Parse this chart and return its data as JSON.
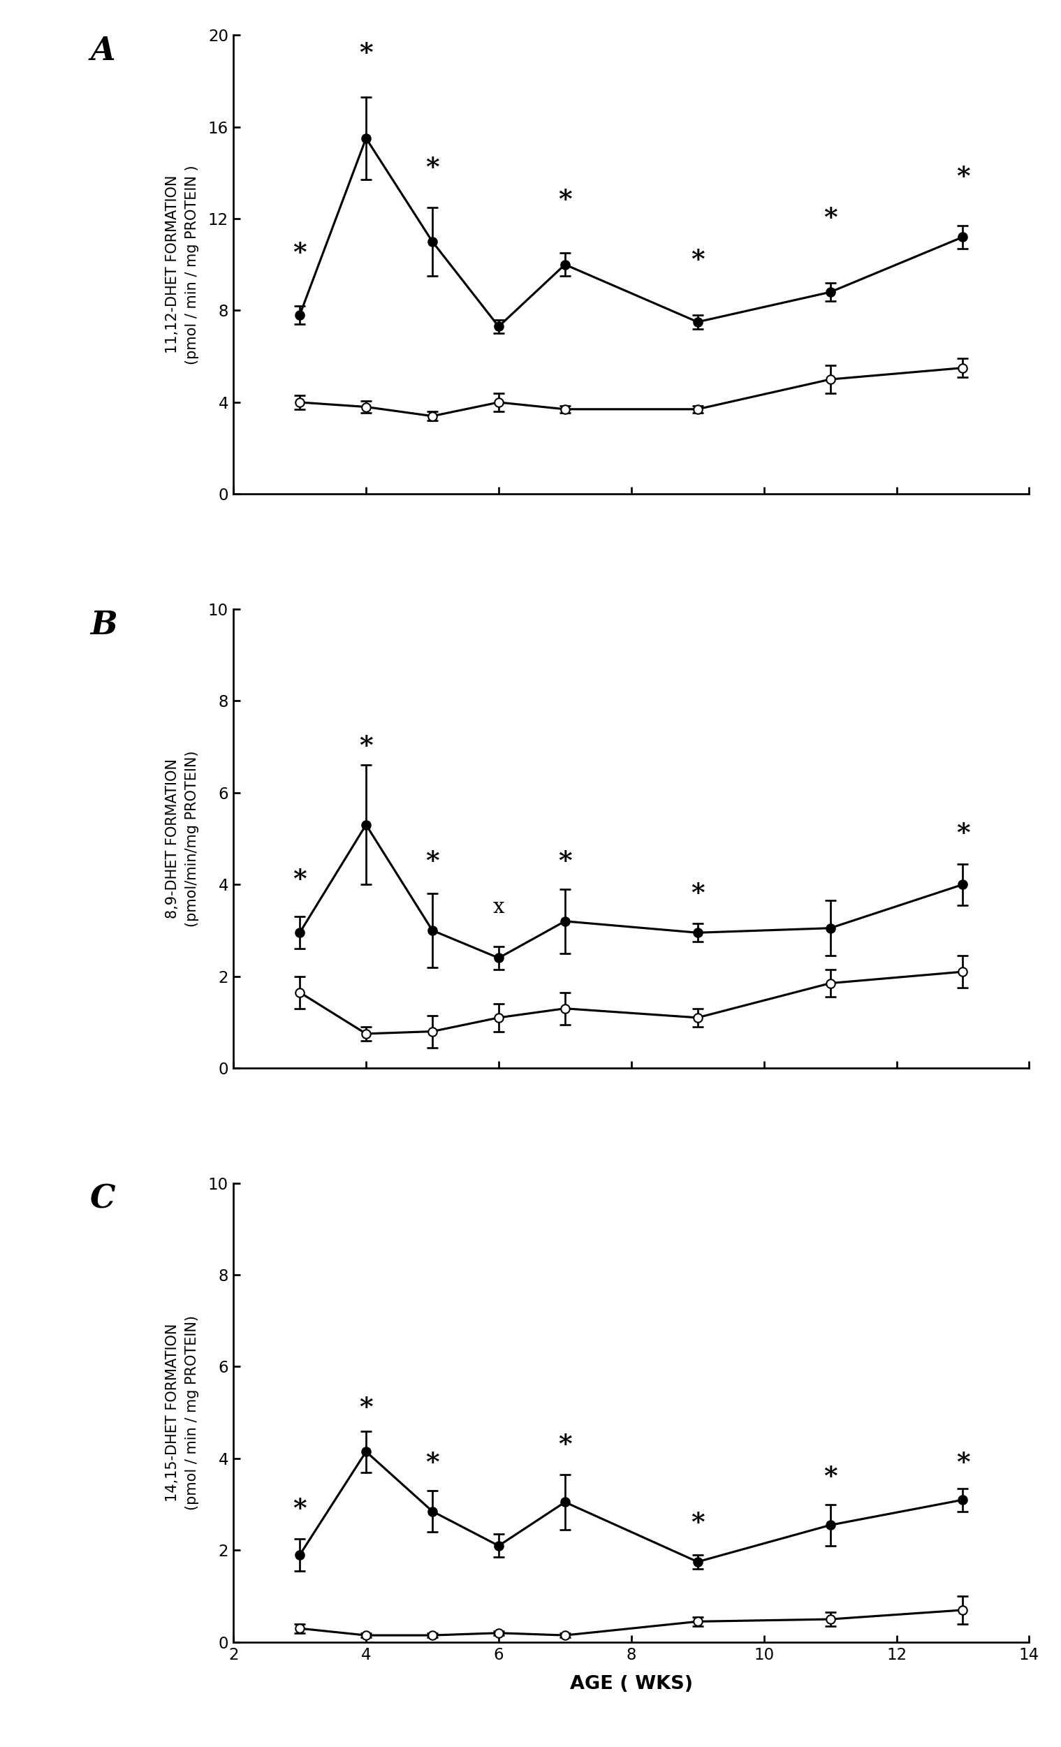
{
  "panel_A": {
    "label": "A",
    "ylabel": "11,12-DHET FORMATION\n(pmol / min / mg PROTEIN )",
    "ylim": [
      0,
      20
    ],
    "yticks": [
      0,
      4,
      8,
      12,
      16,
      20
    ],
    "filled": {
      "x": [
        3,
        4,
        5,
        6,
        7,
        9,
        11,
        13
      ],
      "y": [
        7.8,
        15.5,
        11.0,
        7.3,
        10.0,
        7.5,
        8.8,
        11.2
      ],
      "yerr": [
        0.4,
        1.8,
        1.5,
        0.3,
        0.5,
        0.3,
        0.4,
        0.5
      ]
    },
    "open": {
      "x": [
        3,
        4,
        5,
        6,
        7,
        9,
        11,
        13
      ],
      "y": [
        4.0,
        3.8,
        3.4,
        4.0,
        3.7,
        3.7,
        5.0,
        5.5
      ],
      "yerr": [
        0.3,
        0.25,
        0.2,
        0.4,
        0.15,
        0.15,
        0.6,
        0.4
      ]
    },
    "x_star": [
      3,
      4,
      5,
      7,
      9,
      11,
      13
    ],
    "star_y": [
      10.5,
      19.2,
      14.2,
      12.8,
      10.2,
      12.0,
      13.8
    ]
  },
  "panel_B": {
    "label": "B",
    "ylabel": "8,9-DHET FORMATION\n(pmol/min/mg PROTEIN)",
    "ylim": [
      0,
      10
    ],
    "yticks": [
      0,
      2,
      4,
      6,
      8,
      10
    ],
    "filled": {
      "x": [
        3,
        4,
        5,
        6,
        7,
        9,
        11,
        13
      ],
      "y": [
        2.95,
        5.3,
        3.0,
        2.4,
        3.2,
        2.95,
        3.05,
        4.0
      ],
      "yerr": [
        0.35,
        1.3,
        0.8,
        0.25,
        0.7,
        0.2,
        0.6,
        0.45
      ]
    },
    "open": {
      "x": [
        3,
        4,
        5,
        6,
        7,
        9,
        11,
        13
      ],
      "y": [
        1.65,
        0.75,
        0.8,
        1.1,
        1.3,
        1.1,
        1.85,
        2.1
      ],
      "yerr": [
        0.35,
        0.15,
        0.35,
        0.3,
        0.35,
        0.2,
        0.3,
        0.35
      ]
    },
    "x_star": [
      3,
      4,
      5,
      7,
      9,
      13
    ],
    "star_y": [
      4.1,
      7.0,
      4.5,
      4.5,
      3.8,
      5.1
    ],
    "x_cross": [
      6
    ],
    "cross_y": [
      3.5
    ]
  },
  "panel_C": {
    "label": "C",
    "ylabel": "14,15-DHET FORMATION\n(pmol / min / mg PROTEIN)",
    "ylim": [
      0,
      10
    ],
    "yticks": [
      0,
      2,
      4,
      6,
      8,
      10
    ],
    "filled": {
      "x": [
        3,
        4,
        5,
        6,
        7,
        9,
        11,
        13
      ],
      "y": [
        1.9,
        4.15,
        2.85,
        2.1,
        3.05,
        1.75,
        2.55,
        3.1
      ],
      "yerr": [
        0.35,
        0.45,
        0.45,
        0.25,
        0.6,
        0.15,
        0.45,
        0.25
      ]
    },
    "open": {
      "x": [
        3,
        4,
        5,
        6,
        7,
        9,
        11,
        13
      ],
      "y": [
        0.3,
        0.15,
        0.15,
        0.2,
        0.15,
        0.45,
        0.5,
        0.7
      ],
      "yerr": [
        0.1,
        0.05,
        0.05,
        0.05,
        0.05,
        0.1,
        0.15,
        0.3
      ]
    },
    "x_star": [
      3,
      4,
      5,
      7,
      9,
      11,
      13
    ],
    "star_y": [
      2.9,
      5.1,
      3.9,
      4.3,
      2.6,
      3.6,
      3.9
    ],
    "x_cross": [],
    "cross_y": []
  },
  "xlabel": "AGE ( WKS)",
  "xlim": [
    2,
    14
  ],
  "xticks": [
    2,
    4,
    6,
    8,
    10,
    12,
    14
  ],
  "background_color": "#ffffff",
  "markersize": 6,
  "capsize": 4,
  "linewidth": 1.5,
  "elinewidth": 1.3
}
